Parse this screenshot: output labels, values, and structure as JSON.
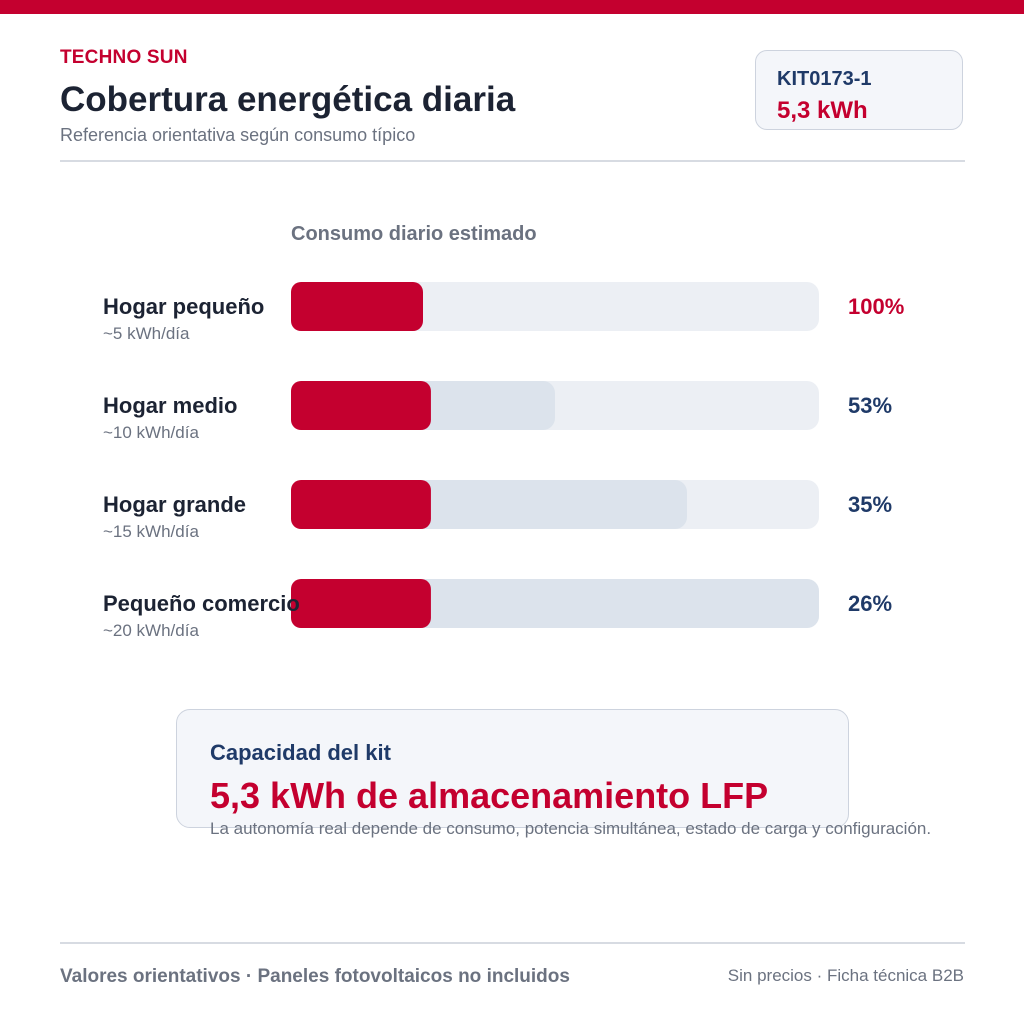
{
  "brand": "TECHNO SUN",
  "title": "Cobertura energética diaria",
  "subtitle": "Referencia orientativa según consumo típico",
  "kit": {
    "code": "KIT0173-1",
    "capacity": "5,3 kWh"
  },
  "chart_data": {
    "type": "bar",
    "orientation": "horizontal",
    "title": "Consumo diario estimado",
    "kit_capacity_kwh": 5.3,
    "max_consumption_kwh": 20,
    "categories": [
      "Hogar pequeño",
      "Hogar medio",
      "Hogar grande",
      "Pequeño comercio"
    ],
    "category_sublabels": [
      "~5 kWh/día",
      "~10 kWh/día",
      "~15 kWh/día",
      "~20 kWh/día"
    ],
    "consumption_kwh": [
      5,
      10,
      15,
      20
    ],
    "coverage_percent": [
      100,
      53,
      35,
      26
    ],
    "coverage_labels": [
      "100%",
      "53%",
      "35%",
      "26%"
    ],
    "series": [
      {
        "values": [
          5,
          10,
          15,
          20
        ]
      },
      {
        "values": [
          5.3,
          5.3,
          5.3,
          5.3
        ]
      }
    ],
    "colors": {
      "coverage": "#c4002f",
      "consumption": "#dce3ec",
      "track": "#eceff4",
      "label_full": "#c4002f",
      "label_partial": "#1f3a68"
    },
    "grid": false,
    "legend": "none"
  },
  "summary": {
    "heading": "Capacidad del kit",
    "value": "5,3 kWh de almacenamiento LFP",
    "note": "La autonomía real depende de consumo, potencia simultánea, estado de carga y configuración."
  },
  "footer": {
    "left": "Valores orientativos · Paneles fotovoltaicos no incluidos",
    "right": "Sin precios · Ficha técnica B2B"
  }
}
